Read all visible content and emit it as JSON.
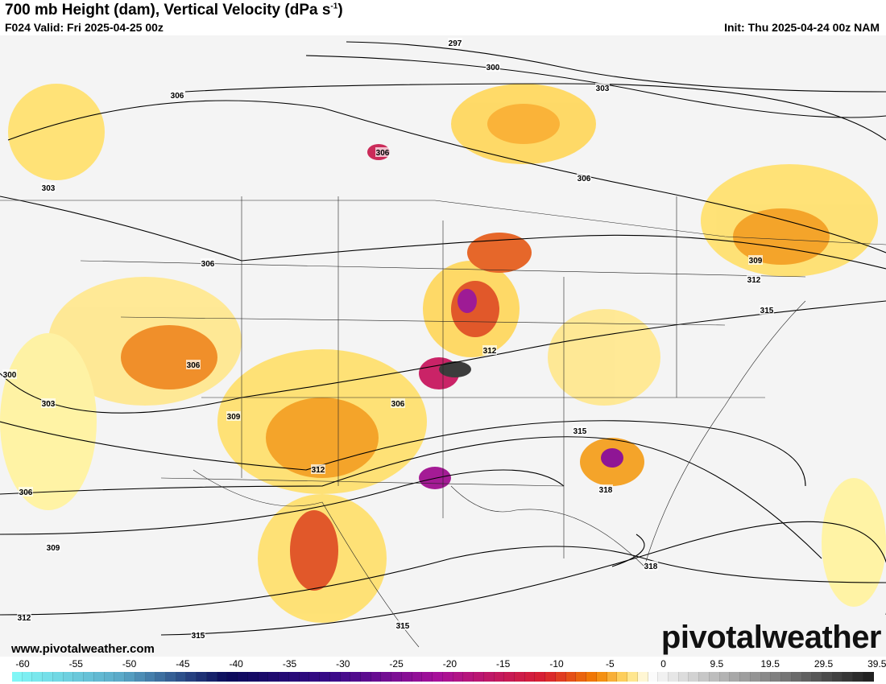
{
  "header": {
    "title": "700 mb Height (dam), Vertical Velocity (dPa s",
    "title_sup": "-1",
    "title_end": ")",
    "valid": "F024 Valid: Fri 2025-04-25 00z",
    "init": "Init: Thu 2025-04-24 00z NAM"
  },
  "footer": {
    "website": "www.pivotalweather.com",
    "brand": "pivotalweather"
  },
  "map": {
    "contour_labels": [
      "297",
      "300",
      "303",
      "306",
      "306",
      "306",
      "303",
      "300",
      "306",
      "306",
      "309",
      "312",
      "315",
      "309",
      "312",
      "315",
      "318",
      "318",
      "306",
      "303",
      "306",
      "309",
      "312",
      "315",
      "315",
      "312"
    ]
  },
  "colorbar": {
    "tick_labels": [
      "-60",
      "-55",
      "-50",
      "-45",
      "-40",
      "-35",
      "-30",
      "-25",
      "-20",
      "-15",
      "-10",
      "-5",
      "0",
      "9.5",
      "19.5",
      "29.5",
      "39.5"
    ],
    "colors": {
      "-60": "#80f6f6",
      "-50": "#5aa8c8",
      "-40": "#0a0a5a",
      "-30": "#3a0a8a",
      "-20": "#a8109a",
      "-10": "#d81e30",
      "-5": "#f28000",
      "-2": "#ffe070",
      "0": "#ffffff",
      "39.5": "#222222"
    }
  }
}
